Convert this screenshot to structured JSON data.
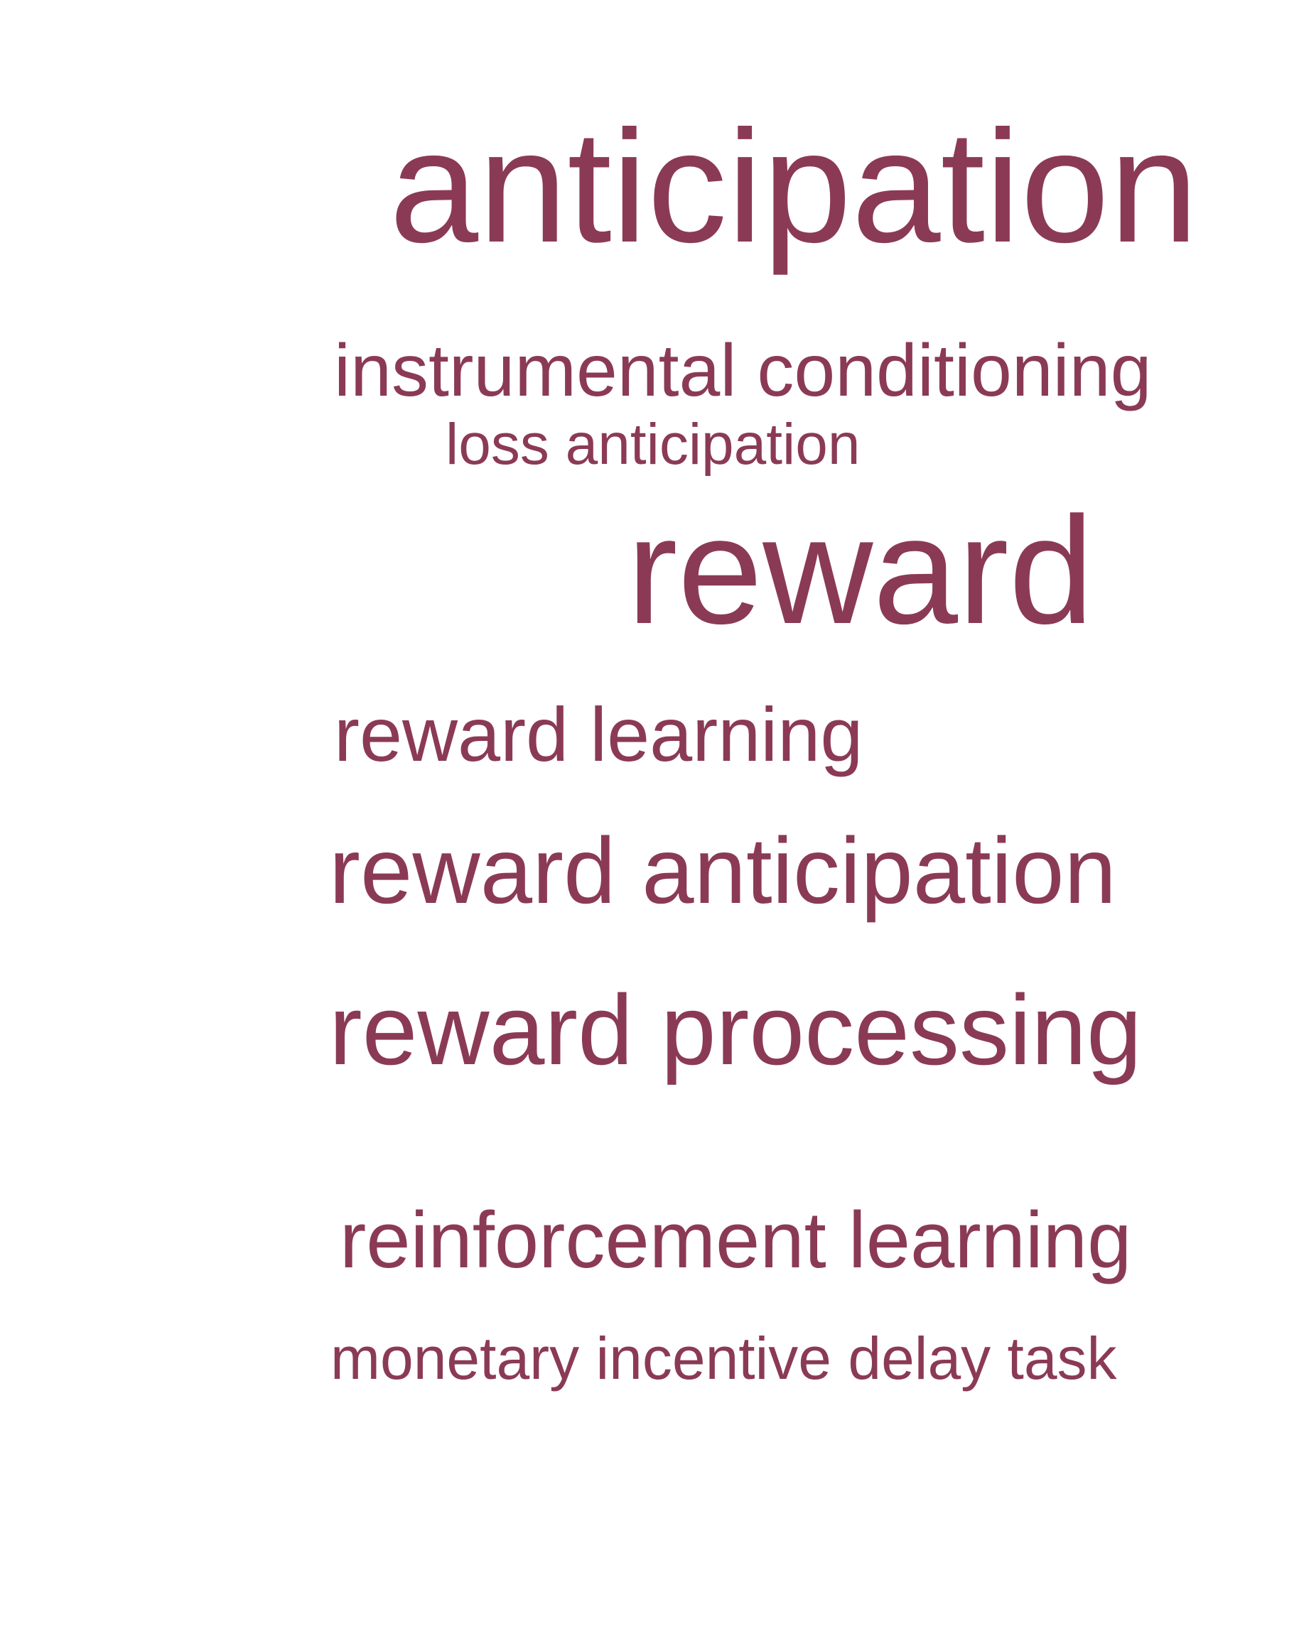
{
  "style": {
    "text_color": "#8b3a55",
    "background": "#ffffff"
  },
  "terms": [
    {
      "text": "anticipation"
    },
    {
      "text": "instrumental conditioning"
    },
    {
      "text": "loss anticipation"
    },
    {
      "text": "reward"
    },
    {
      "text": "reward learning"
    },
    {
      "text": "reward anticipation"
    },
    {
      "text": "reward processing"
    },
    {
      "text": "reinforcement learning"
    },
    {
      "text": "monetary incentive delay task"
    }
  ]
}
